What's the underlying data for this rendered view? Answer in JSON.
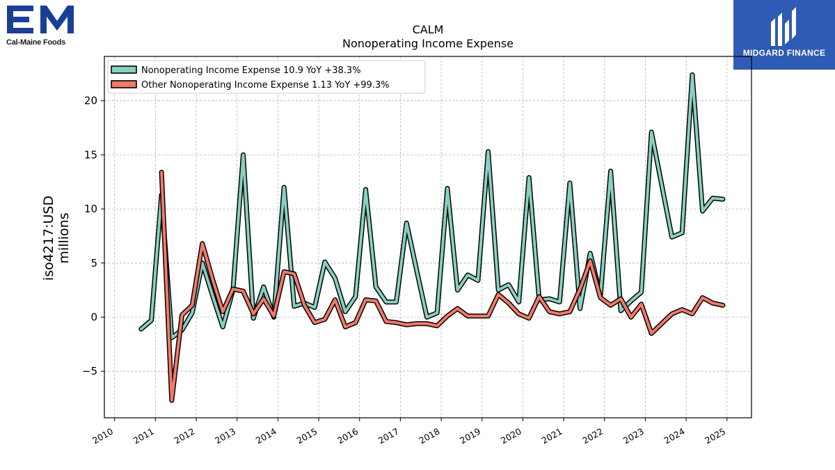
{
  "logos": {
    "left": {
      "mark": "EM",
      "text": "Cal-Maine Foods"
    },
    "right": {
      "text": "MIDGARD FINANCE"
    }
  },
  "colors": {
    "series1": "#88d0c0",
    "series2": "#f4796a",
    "outline": "#000000",
    "brand_blue": "#2f5bb5",
    "cm_blue": "#1b3f95"
  },
  "chart_data": {
    "type": "line",
    "title": "CALM",
    "subtitle": "Nonoperating Income Expense",
    "ylabel": "iso4217:USD\nmillions",
    "xlabel": "",
    "xlim": [
      2009.75,
      2025.6
    ],
    "ylim": [
      -9.3,
      24.1
    ],
    "yticks": [
      -5,
      0,
      5,
      10,
      15,
      20
    ],
    "ytick_labels": [
      "−5",
      "0",
      "5",
      "10",
      "15",
      "20"
    ],
    "xticks": [
      2010,
      2011,
      2012,
      2013,
      2014,
      2015,
      2016,
      2017,
      2018,
      2019,
      2020,
      2021,
      2022,
      2023,
      2024,
      2025
    ],
    "xtick_labels": [
      "2010",
      "2011",
      "2012",
      "2013",
      "2014",
      "2015",
      "2016",
      "2017",
      "2018",
      "2019",
      "2020",
      "2021",
      "2022",
      "2023",
      "2024",
      "2025"
    ],
    "grid": true,
    "legend_position": "upper-left",
    "series": [
      {
        "name": "Nonoperating Income Expense  10.9 YoY +38.3%",
        "color": "#88d0c0",
        "x": [
          2010.65,
          2010.9,
          2011.15,
          2011.4,
          2011.65,
          2011.9,
          2012.15,
          2012.4,
          2012.65,
          2012.9,
          2013.15,
          2013.4,
          2013.65,
          2013.9,
          2014.15,
          2014.4,
          2014.65,
          2014.9,
          2015.15,
          2015.4,
          2015.65,
          2015.9,
          2016.15,
          2016.4,
          2016.65,
          2016.9,
          2017.15,
          2017.4,
          2017.65,
          2017.9,
          2018.15,
          2018.4,
          2018.65,
          2018.9,
          2019.15,
          2019.4,
          2019.65,
          2019.9,
          2020.15,
          2020.4,
          2020.65,
          2020.9,
          2021.15,
          2021.4,
          2021.65,
          2021.9,
          2022.15,
          2022.4,
          2022.65,
          2022.9,
          2023.15,
          2023.65,
          2023.9,
          2024.15,
          2024.4,
          2024.65,
          2024.9
        ],
        "y": [
          -1.1,
          -0.3,
          11.3,
          -1.9,
          -1.2,
          0.4,
          5.0,
          2.0,
          -0.9,
          2.5,
          15.0,
          -0.1,
          2.8,
          0.0,
          12.0,
          1.0,
          1.3,
          0.9,
          5.1,
          3.6,
          0.5,
          1.9,
          11.8,
          2.8,
          1.4,
          1.4,
          8.7,
          4.3,
          0.0,
          0.4,
          11.9,
          2.5,
          3.9,
          3.4,
          15.3,
          2.5,
          3.0,
          1.4,
          12.9,
          1.6,
          1.7,
          1.4,
          12.4,
          0.8,
          5.9,
          2.0,
          13.5,
          0.6,
          1.5,
          2.3,
          17.1,
          7.4,
          7.8,
          22.4,
          9.8,
          11.0,
          10.9
        ]
      },
      {
        "name": "Other Nonoperating Income Expense  1.13 YoY +99.3%",
        "color": "#f4796a",
        "x": [
          2011.15,
          2011.4,
          2011.65,
          2011.9,
          2012.15,
          2012.4,
          2012.65,
          2012.9,
          2013.15,
          2013.4,
          2013.65,
          2013.9,
          2014.15,
          2014.4,
          2014.65,
          2014.9,
          2015.15,
          2015.4,
          2015.65,
          2015.9,
          2016.15,
          2016.4,
          2016.65,
          2016.9,
          2017.15,
          2017.4,
          2017.65,
          2017.9,
          2018.15,
          2018.4,
          2018.65,
          2018.9,
          2019.15,
          2019.4,
          2019.65,
          2019.9,
          2020.15,
          2020.4,
          2020.65,
          2020.9,
          2021.15,
          2021.4,
          2021.65,
          2021.9,
          2022.15,
          2022.4,
          2022.65,
          2022.9,
          2023.15,
          2023.65,
          2023.9,
          2024.15,
          2024.4,
          2024.65,
          2024.9
        ],
        "y": [
          13.4,
          -7.7,
          0.2,
          1.1,
          6.8,
          3.5,
          0.5,
          2.6,
          2.4,
          0.3,
          1.7,
          0.1,
          4.2,
          4.0,
          1.1,
          -0.5,
          -0.2,
          1.6,
          -0.9,
          -0.5,
          1.6,
          1.5,
          -0.4,
          -0.5,
          -0.7,
          -0.6,
          -0.6,
          -0.8,
          0.1,
          0.8,
          0.1,
          0.1,
          0.1,
          2.1,
          1.3,
          0.3,
          -0.1,
          1.9,
          0.5,
          0.3,
          0.5,
          2.6,
          5.2,
          1.8,
          1.1,
          1.7,
          0.0,
          1.2,
          -1.5,
          0.3,
          0.7,
          0.3,
          1.8,
          1.3,
          1.1
        ]
      }
    ]
  }
}
